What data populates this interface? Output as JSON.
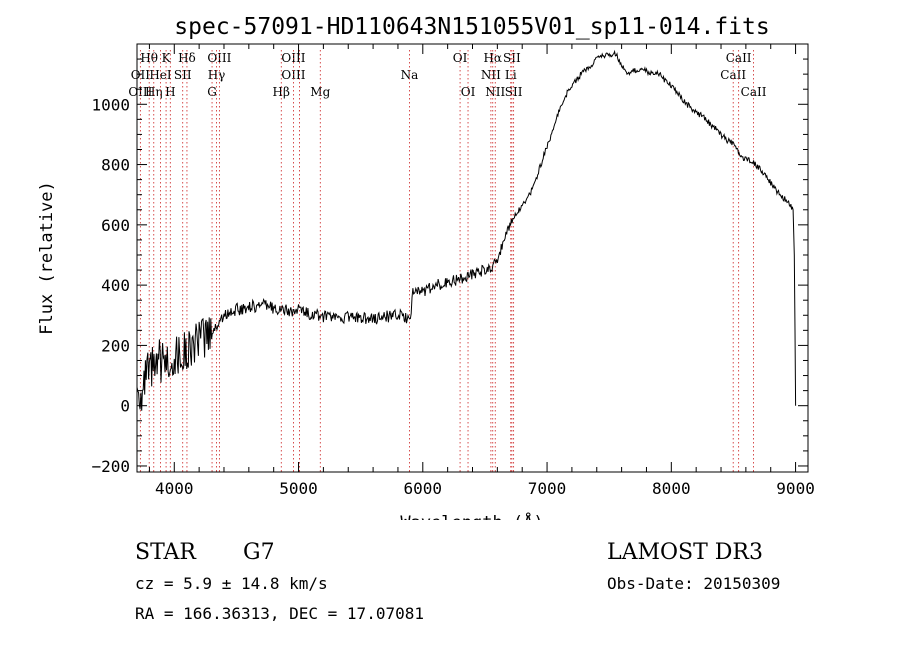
{
  "chart_data": {
    "type": "line",
    "title": "spec-57091-HD110643N151055V01_sp11-014.fits",
    "xlabel": "Wavelength (Å)",
    "ylabel": "Flux (relative)",
    "xlim": [
      3700,
      9100
    ],
    "ylim": [
      -220,
      1200
    ],
    "xticks": [
      4000,
      5000,
      6000,
      7000,
      8000,
      9000
    ],
    "yticks": [
      -200,
      0,
      200,
      400,
      600,
      800,
      1000
    ],
    "x_minor_step": 200,
    "y_minor_step": 50,
    "grid": false,
    "series": [
      {
        "name": "flux",
        "x": [
          3700,
          3750,
          3780,
          3800,
          3830,
          3850,
          3880,
          3900,
          3950,
          4000,
          4050,
          4100,
          4150,
          4200,
          4250,
          4300,
          4350,
          4400,
          4450,
          4500,
          4550,
          4600,
          4650,
          4700,
          4750,
          4800,
          4850,
          4900,
          4950,
          5000,
          5050,
          5100,
          5150,
          5200,
          5300,
          5400,
          5500,
          5600,
          5700,
          5800,
          5850,
          5900,
          5920,
          5950,
          6000,
          6100,
          6200,
          6300,
          6400,
          6500,
          6550,
          6570,
          6600,
          6650,
          6700,
          6750,
          6800,
          6850,
          6900,
          6950,
          7000,
          7050,
          7100,
          7150,
          7200,
          7250,
          7300,
          7350,
          7400,
          7450,
          7500,
          7550,
          7600,
          7650,
          7700,
          7750,
          7800,
          7850,
          7900,
          7950,
          8000,
          8050,
          8100,
          8150,
          8200,
          8250,
          8300,
          8350,
          8400,
          8450,
          8500,
          8540,
          8550,
          8600,
          8650,
          8700,
          8750,
          8800,
          8850,
          8900,
          8950,
          8980,
          8990,
          9000
        ],
        "y": [
          60,
          30,
          120,
          90,
          140,
          100,
          150,
          140,
          150,
          160,
          170,
          180,
          200,
          210,
          230,
          240,
          270,
          300,
          310,
          320,
          320,
          330,
          330,
          335,
          330,
          325,
          320,
          315,
          310,
          320,
          310,
          305,
          300,
          295,
          290,
          295,
          290,
          290,
          295,
          300,
          295,
          280,
          370,
          390,
          380,
          400,
          410,
          420,
          440,
          450,
          460,
          470,
          490,
          540,
          600,
          640,
          660,
          690,
          740,
          800,
          860,
          920,
          980,
          1030,
          1060,
          1090,
          1110,
          1130,
          1150,
          1160,
          1165,
          1170,
          1130,
          1100,
          1110,
          1120,
          1110,
          1100,
          1100,
          1080,
          1060,
          1040,
          1010,
          990,
          970,
          960,
          940,
          920,
          900,
          880,
          870,
          840,
          830,
          820,
          810,
          790,
          770,
          740,
          710,
          690,
          670,
          650,
          500,
          0
        ]
      }
    ],
    "line_labels": {
      "tops": [
        {
          "text": "Hθ",
          "x": 3798
        },
        {
          "text": "K",
          "x": 3934
        },
        {
          "text": "Hδ",
          "x": 4102
        },
        {
          "text": "OIII",
          "x": 4363
        },
        {
          "text": "OIII",
          "x": 4959
        },
        {
          "text": "OI",
          "x": 6300
        },
        {
          "text": "Hα",
          "x": 6563
        },
        {
          "text": "SII",
          "x": 6717
        },
        {
          "text": "CaII",
          "x": 8542
        }
      ],
      "row2": [
        {
          "text": "OII",
          "x": 3727
        },
        {
          "text": "HeI",
          "x": 3889
        },
        {
          "text": "SII",
          "x": 4068
        },
        {
          "text": "Hγ",
          "x": 4340
        },
        {
          "text": "OIII",
          "x": 4959
        },
        {
          "text": "Na",
          "x": 5893
        },
        {
          "text": "NII",
          "x": 6548
        },
        {
          "text": "Li",
          "x": 6708
        },
        {
          "text": "CaII",
          "x": 8498
        }
      ],
      "row3": [
        {
          "text": "OIII",
          "x": 3727
        },
        {
          "text": "Hη",
          "x": 3835
        },
        {
          "text": "H",
          "x": 3968
        },
        {
          "text": "G",
          "x": 4304
        },
        {
          "text": "Hβ",
          "x": 4861
        },
        {
          "text": "Mg",
          "x": 5175
        },
        {
          "text": "OI",
          "x": 6364
        },
        {
          "text": "NII",
          "x": 6583
        },
        {
          "text": "SII",
          "x": 6731
        },
        {
          "text": "CaII",
          "x": 8662
        }
      ],
      "dotted_lines_x": [
        3727,
        3798,
        3835,
        3889,
        3934,
        3968,
        4068,
        4102,
        4304,
        4340,
        4363,
        4861,
        4959,
        5007,
        5175,
        5893,
        6300,
        6364,
        6548,
        6563,
        6583,
        6708,
        6717,
        6731,
        8498,
        8542,
        8662
      ]
    }
  },
  "info": {
    "object_type": "STAR",
    "subclass": "G7",
    "survey": "LAMOST DR3",
    "redshift": "cz =  5.9 ± 14.8 km/s",
    "obs_date": "Obs-Date: 20150309",
    "coords": "RA = 166.36313, DEC =  17.07081"
  }
}
